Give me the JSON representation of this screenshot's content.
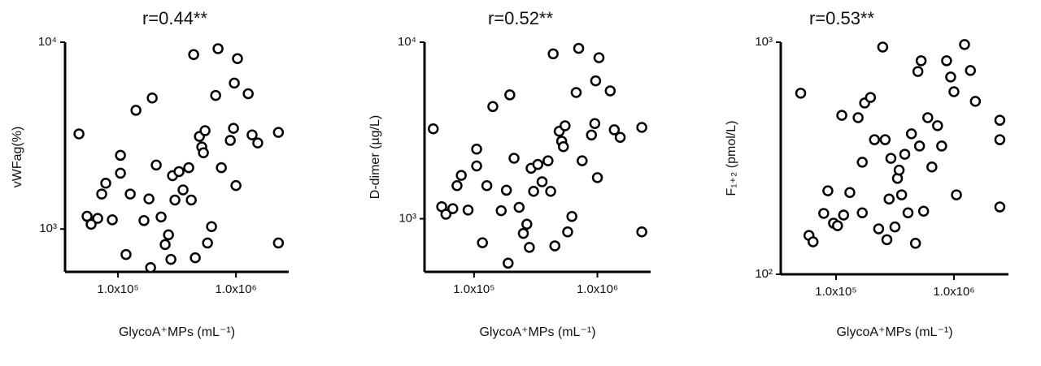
{
  "chart_data": [
    {
      "type": "scatter",
      "title": "r=0.44**",
      "x_label": "GlycoA⁺MPs (mL⁻¹)",
      "y_label": "vWFag(%)",
      "xscale": "log",
      "yscale": "log",
      "color": "#000000",
      "xlim": [
        35600,
        2800000
      ],
      "ylim": [
        590,
        10000
      ],
      "xticks": [
        {
          "value": 100000,
          "label": "1.0x10⁵"
        },
        {
          "value": 1000000,
          "label": "1.0x10⁶"
        }
      ],
      "yticks": [
        {
          "value": 1000,
          "label": "10³"
        },
        {
          "value": 10000,
          "label": "10⁴"
        }
      ],
      "x": [
        46700,
        54700,
        59200,
        67300,
        78800,
        89500,
        105000,
        105000,
        117000,
        127000,
        142000,
        166000,
        183000,
        195000,
        211000,
        232000,
        251000,
        268000,
        281000,
        290000,
        304000,
        329000,
        356000,
        398000,
        418000,
        438000,
        452000,
        490000,
        513000,
        547000,
        574000,
        621000,
        673000,
        705000,
        752000,
        895000,
        953000,
        968000,
        1000000,
        1030000,
        1270000,
        1370000,
        1530000,
        2290000,
        2290000,
        189000,
        530000,
        72800
      ],
      "values": [
        3230,
        1170,
        1060,
        1140,
        1760,
        1120,
        1990,
        2480,
        731,
        1540,
        4320,
        1110,
        1450,
        5030,
        2200,
        1160,
        826,
        931,
        688,
        1930,
        1430,
        2030,
        1620,
        2130,
        1430,
        8590,
        702,
        3130,
        2750,
        3360,
        842,
        1030,
        5190,
        9230,
        2130,
        2980,
        3460,
        6040,
        1710,
        8170,
        5300,
        3190,
        2890,
        3290,
        842,
        622,
        2560,
        1540
      ]
    },
    {
      "type": "scatter",
      "title": "r=0.52**",
      "x_label": "GlycoA⁺MPs (mL⁻¹)",
      "y_label": "D-dimer (µg/L)",
      "xscale": "log",
      "yscale": "log",
      "color": "#000000",
      "xlim": [
        39700,
        2700000
      ],
      "ylim": [
        500,
        10000
      ],
      "xticks": [
        {
          "value": 100000,
          "label": "1.0x10⁵"
        },
        {
          "value": 1000000,
          "label": "1.0x10⁶"
        }
      ],
      "yticks": [
        {
          "value": 1000,
          "label": "10³"
        },
        {
          "value": 10000,
          "label": "10⁴"
        }
      ],
      "x": [
        46700,
        54700,
        59200,
        67300,
        78800,
        89500,
        105000,
        105000,
        117000,
        127000,
        142000,
        166000,
        183000,
        195000,
        211000,
        232000,
        251000,
        268000,
        281000,
        290000,
        304000,
        329000,
        356000,
        398000,
        418000,
        438000,
        452000,
        490000,
        513000,
        547000,
        574000,
        621000,
        673000,
        705000,
        752000,
        895000,
        953000,
        968000,
        1000000,
        1030000,
        1270000,
        1370000,
        1530000,
        2290000,
        2290000,
        189000,
        530000,
        72800
      ],
      "values": [
        3230,
        1170,
        1060,
        1140,
        1760,
        1120,
        1990,
        2480,
        731,
        1540,
        4320,
        1110,
        1450,
        5030,
        2200,
        1160,
        826,
        931,
        688,
        1930,
        1430,
        2030,
        1620,
        2130,
        1430,
        8590,
        702,
        3130,
        2750,
        3360,
        842,
        1030,
        5190,
        9230,
        2130,
        2980,
        3460,
        6040,
        1710,
        8170,
        5300,
        3190,
        2890,
        3290,
        842,
        560,
        2560,
        1540
      ]
    },
    {
      "type": "scatter",
      "title": "r=0.53**",
      "x_label": "GlycoA⁺MPs (mL⁻¹)",
      "y_label": "F₁₊₂ (pmol/L)",
      "xscale": "log",
      "yscale": "log",
      "color": "#000000",
      "xlim": [
        34000,
        2900000
      ],
      "ylim": [
        100,
        1000
      ],
      "xticks": [
        {
          "value": 100000,
          "label": "1.0x10⁵"
        },
        {
          "value": 1000000,
          "label": "1.0x10⁶"
        }
      ],
      "yticks": [
        {
          "value": 100,
          "label": "10²"
        },
        {
          "value": 1000,
          "label": "10³"
        }
      ],
      "x": [
        50200,
        59000,
        63900,
        78700,
        85300,
        95300,
        103000,
        112000,
        116000,
        131000,
        154000,
        167000,
        175000,
        196000,
        212000,
        230000,
        249000,
        261000,
        270000,
        282000,
        292000,
        316000,
        332000,
        360000,
        383000,
        408000,
        436000,
        472000,
        495000,
        511000,
        527000,
        553000,
        600000,
        650000,
        726000,
        787000,
        866000,
        938000,
        1000000,
        1050000,
        1230000,
        1380000,
        1520000,
        2450000,
        2450000,
        2450000,
        167000,
        343000
      ],
      "values": [
        603,
        147,
        138,
        183,
        229,
        166,
        162,
        484,
        180,
        225,
        473,
        184,
        547,
        578,
        380,
        157,
        953,
        380,
        141,
        211,
        316,
        160,
        259,
        220,
        329,
        184,
        403,
        136,
        748,
        357,
        832,
        187,
        473,
        290,
        437,
        357,
        832,
        708,
        612,
        220,
        977,
        755,
        556,
        461,
        380,
        195,
        304,
        281
      ]
    }
  ]
}
